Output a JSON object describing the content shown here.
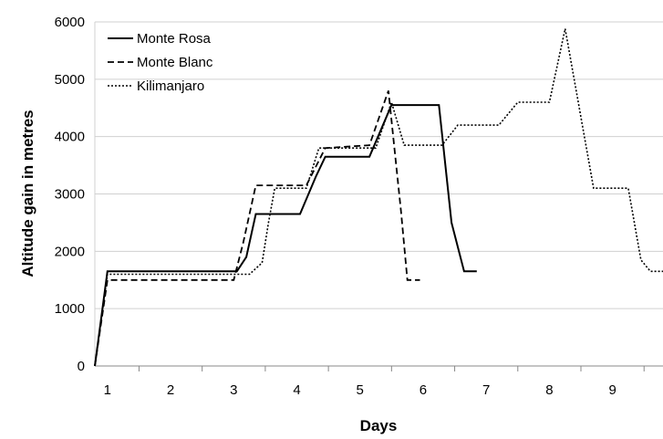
{
  "chart_data": {
    "type": "line",
    "title": "",
    "xlabel": "Days",
    "ylabel": "Altitude gain in metres",
    "xlim": [
      0.8,
      9.8
    ],
    "ylim": [
      0,
      6000
    ],
    "xticks": [
      1,
      2,
      3,
      4,
      5,
      6,
      7,
      8,
      9
    ],
    "yticks": [
      0,
      1000,
      2000,
      3000,
      4000,
      5000,
      6000
    ],
    "grid": "horizontal",
    "legend_position": "top-left",
    "series": [
      {
        "name": "Monte Rosa",
        "style": "solid",
        "points": [
          [
            0.8,
            0
          ],
          [
            1.0,
            1650
          ],
          [
            3.05,
            1650
          ],
          [
            3.2,
            1900
          ],
          [
            3.35,
            2650
          ],
          [
            4.05,
            2650
          ],
          [
            4.3,
            3300
          ],
          [
            4.45,
            3650
          ],
          [
            5.15,
            3650
          ],
          [
            5.5,
            4550
          ],
          [
            6.25,
            4550
          ],
          [
            6.45,
            2500
          ],
          [
            6.65,
            1650
          ],
          [
            6.85,
            1650
          ]
        ]
      },
      {
        "name": "Monte Blanc",
        "style": "dashed",
        "points": [
          [
            0.8,
            0
          ],
          [
            1.0,
            1500
          ],
          [
            3.0,
            1500
          ],
          [
            3.15,
            2150
          ],
          [
            3.35,
            3150
          ],
          [
            4.15,
            3150
          ],
          [
            4.45,
            3800
          ],
          [
            5.15,
            3850
          ],
          [
            5.45,
            4800
          ],
          [
            5.65,
            2700
          ],
          [
            5.75,
            1500
          ],
          [
            5.95,
            1500
          ]
        ]
      },
      {
        "name": "Kilimanjaro",
        "style": "dotted",
        "points": [
          [
            0.8,
            0
          ],
          [
            1.0,
            1600
          ],
          [
            3.25,
            1600
          ],
          [
            3.45,
            1800
          ],
          [
            3.55,
            2500
          ],
          [
            3.65,
            3100
          ],
          [
            4.15,
            3100
          ],
          [
            4.35,
            3800
          ],
          [
            5.25,
            3800
          ],
          [
            5.5,
            4600
          ],
          [
            5.7,
            3850
          ],
          [
            6.3,
            3850
          ],
          [
            6.55,
            4200
          ],
          [
            7.2,
            4200
          ],
          [
            7.5,
            4600
          ],
          [
            8.0,
            4600
          ],
          [
            8.25,
            5880
          ],
          [
            8.7,
            3100
          ],
          [
            9.25,
            3100
          ],
          [
            9.45,
            1850
          ],
          [
            9.6,
            1650
          ],
          [
            9.8,
            1650
          ]
        ]
      }
    ]
  }
}
